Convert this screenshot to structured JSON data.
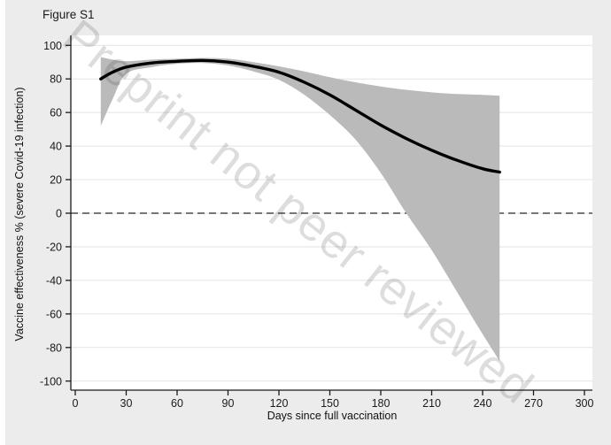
{
  "figure": {
    "title": "Figure S1",
    "watermark": "Preprint not peer reviewed"
  },
  "chart_data": {
    "type": "line",
    "title": "Figure S1",
    "xlabel": "Days since full vaccination",
    "ylabel": "Vaccine effectiveness % (severe Covid-19 infection)",
    "xlim": [
      0,
      300
    ],
    "ylim": [
      -100,
      100
    ],
    "x_ticks": [
      "0",
      "30",
      "60",
      "90",
      "120",
      "150",
      "180",
      "210",
      "240",
      "270",
      "300"
    ],
    "y_ticks": [
      "-100",
      "-80",
      "-60",
      "-40",
      "-20",
      "0",
      "20",
      "40",
      "60",
      "80",
      "100"
    ],
    "grid": "horizontal-only",
    "legend": "none",
    "reference_line": {
      "y": 0,
      "style": "dashed",
      "color": "#4a4a4a"
    },
    "series": [
      {
        "name": "vaccine-effectiveness-estimate",
        "x": [
          15,
          22,
          30,
          45,
          60,
          75,
          90,
          105,
          120,
          135,
          150,
          165,
          180,
          195,
          210,
          225,
          240,
          250
        ],
        "y": [
          80,
          84,
          87,
          89.5,
          90.5,
          91,
          90,
          87.5,
          84,
          78,
          70.5,
          61.5,
          52.5,
          44.5,
          37.5,
          31.5,
          26.5,
          24.5
        ]
      }
    ],
    "confidence_band": {
      "x": [
        15,
        22,
        30,
        45,
        60,
        75,
        90,
        105,
        120,
        135,
        150,
        165,
        180,
        195,
        210,
        225,
        240,
        250
      ],
      "upper": [
        93,
        91.5,
        90.5,
        91.5,
        92,
        92.5,
        92,
        90,
        87.5,
        84.5,
        81,
        78,
        75.5,
        73.5,
        72,
        71,
        70.5,
        70
      ],
      "lower": [
        52,
        68,
        83,
        87,
        89,
        89.5,
        88,
        84.5,
        79.5,
        70.5,
        58.5,
        44,
        24,
        0,
        -22,
        -47,
        -72,
        -88
      ]
    },
    "colors": {
      "line": "#000000",
      "band": "#bababa",
      "plot_background": "#ffffff",
      "page_background": "#ececec",
      "gridline": "#e3e3e3",
      "axis": "#1a1a1a"
    }
  }
}
